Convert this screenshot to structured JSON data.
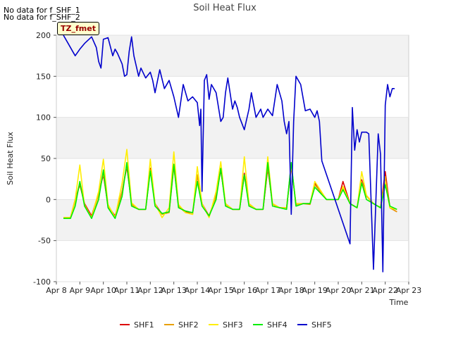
{
  "notes": [
    "No data for f_SHF_1",
    "No data for f_SHF_2"
  ],
  "site_label": "TZ_fmet",
  "chart_data": {
    "type": "line",
    "title": "Soil Heat Flux",
    "xlabel": "Time",
    "ylabel": "Soil Heat Flux",
    "xlim": [
      8,
      23
    ],
    "ylim": [
      -100,
      200
    ],
    "x_ticks": [
      8,
      9,
      10,
      11,
      12,
      13,
      14,
      15,
      16,
      17,
      18,
      19,
      20,
      21,
      22,
      23
    ],
    "x_tick_labels": [
      "Apr 8",
      "Apr 9",
      "Apr 10",
      "Apr 11",
      "Apr 12",
      "Apr 13",
      "Apr 14",
      "Apr 15",
      "Apr 16",
      "Apr 17",
      "Apr 18",
      "Apr 19",
      "Apr 20",
      "Apr 21",
      "Apr 22",
      "Apr 23"
    ],
    "y_ticks": [
      -100,
      -50,
      0,
      50,
      100,
      150,
      200
    ],
    "y_tick_labels": [
      "-100",
      "-50",
      "0",
      "50",
      "100",
      "150",
      "200"
    ],
    "background_bands": [
      [
        -50,
        0
      ],
      [
        50,
        100
      ],
      [
        150,
        200
      ]
    ],
    "series": [
      {
        "name": "SHF1",
        "color": "#dd0000",
        "x": [
          8.3,
          8.6,
          8.8,
          9.0,
          9.2,
          9.5,
          9.8,
          10.0,
          10.2,
          10.5,
          10.8,
          11.0,
          11.2,
          11.5,
          11.8,
          12.0,
          12.2,
          12.5,
          12.8,
          13.0,
          13.2,
          13.5,
          13.8,
          14.0,
          14.2,
          14.5,
          14.8,
          15.0,
          15.2,
          15.5,
          15.8,
          16.0,
          16.2,
          16.5,
          16.8,
          17.0,
          17.2,
          17.5,
          17.8,
          18.0,
          18.2,
          18.5,
          18.8,
          19.0,
          19.5,
          20.0,
          20.2,
          20.5,
          20.8,
          21.0,
          21.2,
          21.5,
          21.8,
          22.0,
          22.2,
          22.5
        ],
        "y": [
          -22,
          -22,
          0,
          18,
          -5,
          -20,
          8,
          30,
          -8,
          -20,
          10,
          40,
          -5,
          -12,
          -12,
          38,
          -5,
          -18,
          -15,
          42,
          -8,
          -15,
          -18,
          30,
          -5,
          -20,
          5,
          36,
          -5,
          -12,
          -12,
          32,
          -5,
          -12,
          -12,
          38,
          -5,
          -10,
          -10,
          40,
          -5,
          -5,
          -5,
          20,
          0,
          0,
          22,
          -5,
          -10,
          24,
          5,
          -5,
          -10,
          34,
          -10,
          -15
        ]
      },
      {
        "name": "SHF2",
        "color": "#e8a000",
        "x": [
          8.3,
          8.6,
          8.8,
          9.0,
          9.2,
          9.5,
          9.8,
          10.0,
          10.2,
          10.5,
          10.8,
          11.0,
          11.2,
          11.5,
          11.8,
          12.0,
          12.2,
          12.5,
          12.8,
          13.0,
          13.2,
          13.5,
          13.8,
          14.0,
          14.2,
          14.5,
          14.8,
          15.0,
          15.2,
          15.5,
          15.8,
          16.0,
          16.2,
          16.5,
          16.8,
          17.0,
          17.2,
          17.5,
          17.8,
          18.0,
          18.2,
          18.5,
          18.8,
          19.0,
          19.5,
          20.0,
          20.2,
          20.5,
          20.8,
          21.0,
          21.2,
          21.5,
          21.8,
          22.0,
          22.2,
          22.5
        ],
        "y": [
          -22,
          -22,
          -2,
          20,
          -6,
          -22,
          6,
          32,
          -8,
          -22,
          10,
          42,
          -6,
          -12,
          -12,
          36,
          -6,
          -18,
          -16,
          40,
          -8,
          -16,
          -18,
          30,
          -6,
          -20,
          4,
          38,
          -6,
          -12,
          -12,
          30,
          -6,
          -12,
          -12,
          40,
          -6,
          -10,
          -10,
          42,
          -6,
          -5,
          -6,
          18,
          0,
          0,
          14,
          -5,
          -10,
          22,
          4,
          -5,
          -10,
          28,
          -10,
          -15
        ]
      },
      {
        "name": "SHF3",
        "color": "#ffee00",
        "x": [
          8.3,
          8.6,
          8.8,
          9.0,
          9.2,
          9.5,
          9.8,
          10.0,
          10.2,
          10.5,
          10.8,
          11.0,
          11.2,
          11.5,
          11.8,
          12.0,
          12.2,
          12.5,
          12.8,
          13.0,
          13.2,
          13.5,
          13.8,
          14.0,
          14.2,
          14.5,
          14.8,
          15.0,
          15.2,
          15.5,
          15.8,
          16.0,
          16.2,
          16.5,
          16.8,
          17.0,
          17.2,
          17.5,
          17.8,
          18.0,
          18.2,
          18.5,
          18.8,
          19.0,
          19.5,
          20.0,
          20.2,
          20.5,
          20.8,
          21.0,
          21.2,
          21.5,
          21.8,
          22.0,
          22.2,
          22.5
        ],
        "y": [
          -22,
          -22,
          0,
          42,
          -8,
          -22,
          10,
          49,
          -6,
          -22,
          20,
          61,
          -4,
          -12,
          -12,
          49,
          -5,
          -22,
          -10,
          58,
          -6,
          -16,
          -18,
          40,
          -5,
          -22,
          10,
          46,
          -5,
          -12,
          -12,
          52,
          -5,
          -12,
          -12,
          52,
          -5,
          -10,
          -10,
          42,
          -5,
          -5,
          -5,
          22,
          0,
          0,
          16,
          -5,
          -10,
          34,
          5,
          -5,
          -10,
          20,
          -10,
          -12
        ]
      },
      {
        "name": "SHF4",
        "color": "#00ee00",
        "x": [
          8.3,
          8.6,
          8.8,
          9.0,
          9.2,
          9.5,
          9.8,
          10.0,
          10.2,
          10.5,
          10.8,
          11.0,
          11.2,
          11.5,
          11.8,
          12.0,
          12.2,
          12.5,
          12.8,
          13.0,
          13.2,
          13.5,
          13.8,
          14.0,
          14.2,
          14.5,
          14.8,
          15.0,
          15.2,
          15.5,
          15.8,
          16.0,
          16.2,
          16.5,
          16.8,
          17.0,
          17.2,
          17.5,
          17.8,
          18.0,
          18.2,
          18.5,
          18.8,
          19.0,
          19.5,
          20.0,
          20.2,
          20.5,
          20.8,
          21.0,
          21.2,
          21.5,
          21.8,
          22.0,
          22.2,
          22.5
        ],
        "y": [
          -23,
          -23,
          -8,
          22,
          -8,
          -23,
          0,
          36,
          -10,
          -23,
          4,
          45,
          -8,
          -12,
          -12,
          35,
          -8,
          -17,
          -15,
          43,
          -10,
          -14,
          -16,
          22,
          -8,
          -20,
          0,
          38,
          -8,
          -12,
          -12,
          30,
          -8,
          -12,
          -12,
          45,
          -8,
          -10,
          -12,
          45,
          -8,
          -5,
          -5,
          15,
          0,
          0,
          12,
          -5,
          -10,
          20,
          0,
          -5,
          -10,
          18,
          -8,
          -12
        ]
      },
      {
        "name": "SHF5",
        "color": "#0000cc",
        "x": [
          8.3,
          8.5,
          8.7,
          8.8,
          9.0,
          9.2,
          9.5,
          9.7,
          9.8,
          9.9,
          10.0,
          10.2,
          10.4,
          10.5,
          10.6,
          10.8,
          10.9,
          11.0,
          11.1,
          11.2,
          11.3,
          11.5,
          11.6,
          11.8,
          12.0,
          12.1,
          12.2,
          12.4,
          12.6,
          12.8,
          13.0,
          13.2,
          13.4,
          13.6,
          13.8,
          14.0,
          14.1,
          14.15,
          14.2,
          14.3,
          14.4,
          14.5,
          14.6,
          14.8,
          15.0,
          15.1,
          15.2,
          15.3,
          15.5,
          15.6,
          15.7,
          15.8,
          16.0,
          16.2,
          16.3,
          16.5,
          16.7,
          16.8,
          17.0,
          17.2,
          17.4,
          17.6,
          17.7,
          17.8,
          17.9,
          18.0,
          18.1,
          18.2,
          18.4,
          18.6,
          18.8,
          19.0,
          19.1,
          19.2,
          19.3,
          20.5,
          20.6,
          20.7,
          20.8,
          20.9,
          21.0,
          21.2,
          21.3,
          21.5,
          21.7,
          21.8,
          21.9,
          22.0,
          22.1,
          22.2,
          22.3,
          22.4
        ],
        "y": [
          200,
          190,
          180,
          175,
          183,
          190,
          198,
          185,
          168,
          160,
          195,
          197,
          175,
          183,
          178,
          165,
          150,
          152,
          180,
          198,
          175,
          150,
          160,
          148,
          155,
          145,
          130,
          158,
          135,
          145,
          125,
          100,
          140,
          120,
          125,
          118,
          90,
          110,
          10,
          145,
          152,
          122,
          140,
          130,
          95,
          100,
          130,
          148,
          110,
          120,
          112,
          100,
          85,
          110,
          130,
          100,
          110,
          100,
          110,
          102,
          140,
          120,
          95,
          80,
          95,
          -18,
          95,
          150,
          140,
          108,
          110,
          100,
          108,
          95,
          47,
          -54,
          112,
          60,
          85,
          70,
          82,
          82,
          80,
          -85,
          80,
          55,
          -88,
          115,
          140,
          125,
          135,
          135
        ]
      }
    ]
  }
}
